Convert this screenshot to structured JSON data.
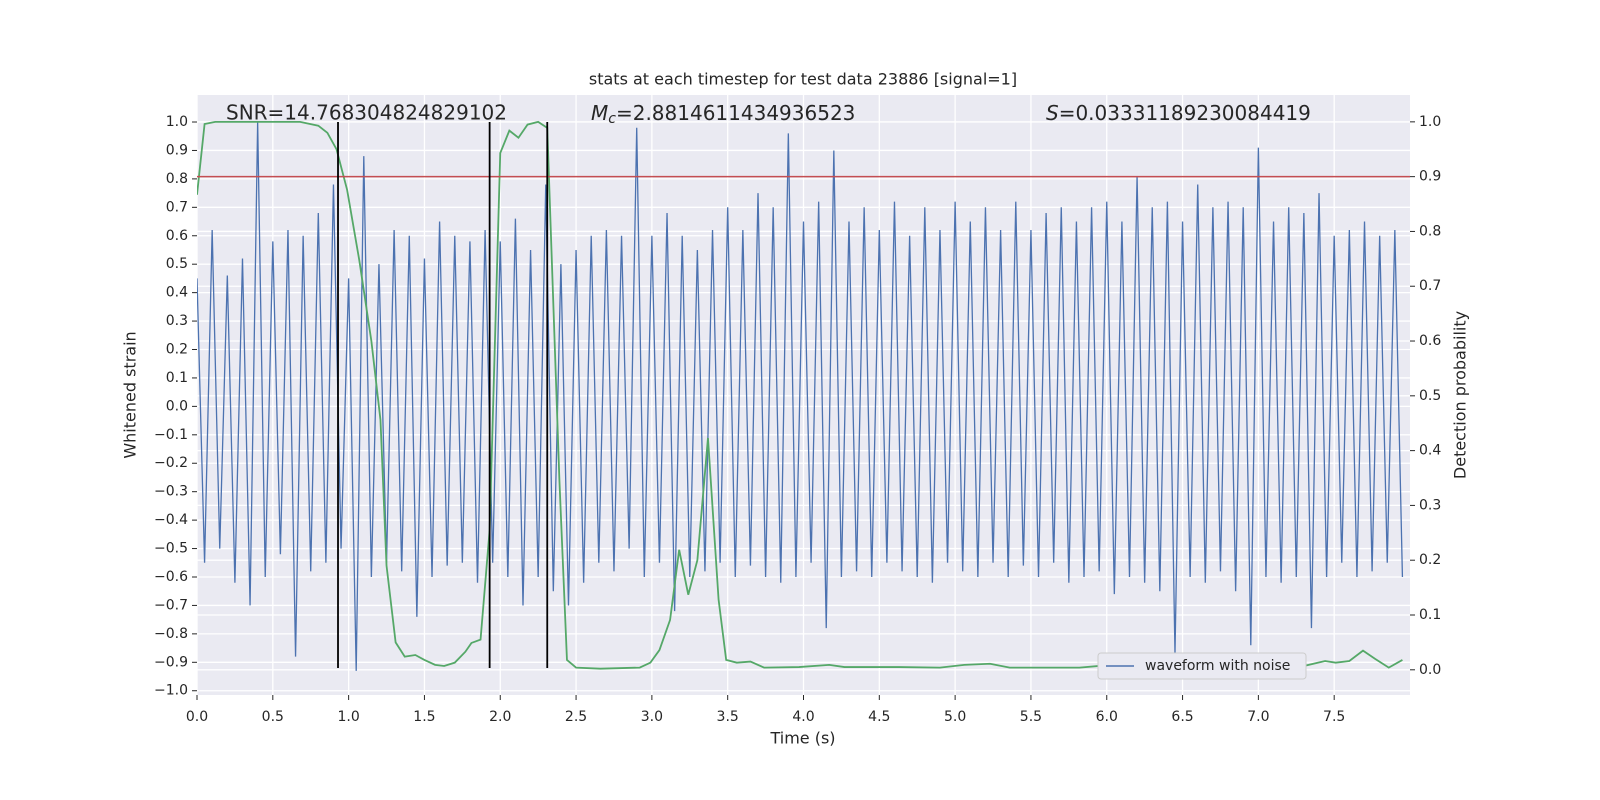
{
  "chart_data": {
    "type": "line",
    "title": "stats at each timestep for test data 23886 [signal=1]",
    "annotations": {
      "snr": "SNR=14.768304824829102",
      "mc": {
        "symbol": "M",
        "subscript": "c",
        "text": "=2.8814611434936523"
      },
      "s": {
        "symbol": "S",
        "text": "=0.03331189230084419"
      }
    },
    "x_label": "Time (s)",
    "y_label": "Whitened strain",
    "y2_label": "Detection probability",
    "xlim": [
      0,
      8.0
    ],
    "ylim": [
      -1.015,
      1.095
    ],
    "y2lim": [
      -0.046,
      1.049
    ],
    "xticks": [
      {
        "value": 0,
        "label": "0.0"
      },
      {
        "value": 0.5,
        "label": "0.5"
      },
      {
        "value": 1,
        "label": "1.0"
      },
      {
        "value": 1.5,
        "label": "1.5"
      },
      {
        "value": 2,
        "label": "2.0"
      },
      {
        "value": 2.5,
        "label": "2.5"
      },
      {
        "value": 3,
        "label": "3.0"
      },
      {
        "value": 3.5,
        "label": "3.5"
      },
      {
        "value": 4,
        "label": "4.0"
      },
      {
        "value": 4.5,
        "label": "4.5"
      },
      {
        "value": 5,
        "label": "5.0"
      },
      {
        "value": 5.5,
        "label": "5.5"
      },
      {
        "value": 6,
        "label": "6.0"
      },
      {
        "value": 6.5,
        "label": "6.5"
      },
      {
        "value": 7,
        "label": "7.0"
      },
      {
        "value": 7.5,
        "label": "7.5"
      }
    ],
    "yticks": [
      {
        "value": -1,
        "label": "−1.0"
      },
      {
        "value": -0.9,
        "label": "−0.9"
      },
      {
        "value": -0.8,
        "label": "−0.8"
      },
      {
        "value": -0.7,
        "label": "−0.7"
      },
      {
        "value": -0.6,
        "label": "−0.6"
      },
      {
        "value": -0.5,
        "label": "−0.5"
      },
      {
        "value": -0.4,
        "label": "−0.4"
      },
      {
        "value": -0.3,
        "label": "−0.3"
      },
      {
        "value": -0.2,
        "label": "−0.2"
      },
      {
        "value": -0.1,
        "label": "−0.1"
      },
      {
        "value": 0,
        "label": "0.0"
      },
      {
        "value": 0.1,
        "label": "0.1"
      },
      {
        "value": 0.2,
        "label": "0.2"
      },
      {
        "value": 0.3,
        "label": "0.3"
      },
      {
        "value": 0.4,
        "label": "0.4"
      },
      {
        "value": 0.5,
        "label": "0.5"
      },
      {
        "value": 0.6,
        "label": "0.6"
      },
      {
        "value": 0.7,
        "label": "0.7"
      },
      {
        "value": 0.8,
        "label": "0.8"
      },
      {
        "value": 0.9,
        "label": "0.9"
      },
      {
        "value": 1,
        "label": "1.0"
      }
    ],
    "y2ticks": [
      {
        "value": 0,
        "label": "0.0"
      },
      {
        "value": 0.1,
        "label": "0.1"
      },
      {
        "value": 0.2,
        "label": "0.2"
      },
      {
        "value": 0.3,
        "label": "0.3"
      },
      {
        "value": 0.4,
        "label": "0.4"
      },
      {
        "value": 0.5,
        "label": "0.5"
      },
      {
        "value": 0.6,
        "label": "0.6"
      },
      {
        "value": 0.7,
        "label": "0.7"
      },
      {
        "value": 0.8,
        "label": "0.8"
      },
      {
        "value": 0.9,
        "label": "0.9"
      },
      {
        "value": 1,
        "label": "1.0"
      }
    ],
    "grid": true,
    "legend": "lower right",
    "series": [
      {
        "name": "waveform with noise",
        "color": "#4c72b0",
        "axis": "y",
        "x": [
          0,
          0.05,
          0.1,
          0.15,
          0.2,
          0.25,
          0.3,
          0.35,
          0.4,
          0.45,
          0.5,
          0.55,
          0.6,
          0.65,
          0.7,
          0.75,
          0.8,
          0.85,
          0.9,
          0.95,
          1,
          1.05,
          1.1,
          1.15,
          1.2,
          1.25,
          1.3,
          1.35,
          1.4,
          1.45,
          1.5,
          1.55,
          1.6,
          1.65,
          1.7,
          1.75,
          1.8,
          1.85,
          1.9,
          1.95,
          2,
          2.05,
          2.1,
          2.15,
          2.2,
          2.25,
          2.3,
          2.35,
          2.4,
          2.45,
          2.5,
          2.55,
          2.6,
          2.65,
          2.7,
          2.75,
          2.8,
          2.85,
          2.9,
          2.95,
          3,
          3.05,
          3.1,
          3.15,
          3.2,
          3.25,
          3.3,
          3.35,
          3.4,
          3.45,
          3.5,
          3.55,
          3.6,
          3.65,
          3.7,
          3.75,
          3.8,
          3.85,
          3.9,
          3.95,
          4,
          4.05,
          4.1,
          4.15,
          4.2,
          4.25,
          4.3,
          4.35,
          4.4,
          4.45,
          4.5,
          4.55,
          4.6,
          4.65,
          4.7,
          4.75,
          4.8,
          4.85,
          4.9,
          4.95,
          5,
          5.05,
          5.1,
          5.15,
          5.2,
          5.25,
          5.3,
          5.35,
          5.4,
          5.45,
          5.5,
          5.55,
          5.6,
          5.65,
          5.7,
          5.75,
          5.8,
          5.85,
          5.9,
          5.95,
          6,
          6.05,
          6.1,
          6.15,
          6.2,
          6.25,
          6.3,
          6.35,
          6.4,
          6.45,
          6.5,
          6.55,
          6.6,
          6.65,
          6.7,
          6.75,
          6.8,
          6.85,
          6.9,
          6.95,
          7,
          7.05,
          7.1,
          7.15,
          7.2,
          7.25,
          7.3,
          7.35,
          7.4,
          7.45,
          7.5,
          7.55,
          7.6,
          7.65,
          7.7,
          7.75,
          7.8,
          7.85,
          7.9,
          7.95
        ],
        "values": [
          0.45,
          -0.55,
          0.62,
          -0.5,
          0.46,
          -0.62,
          0.52,
          -0.7,
          1.0,
          -0.6,
          0.58,
          -0.52,
          0.62,
          -0.88,
          0.6,
          -0.58,
          0.68,
          -0.55,
          0.78,
          -0.5,
          0.45,
          -0.93,
          0.88,
          -0.6,
          0.5,
          -0.55,
          0.62,
          -0.58,
          0.6,
          -0.74,
          0.52,
          -0.6,
          0.65,
          -0.56,
          0.6,
          -0.55,
          0.58,
          -0.62,
          0.62,
          -0.55,
          0.58,
          -0.6,
          0.66,
          -0.7,
          0.55,
          -0.6,
          0.78,
          -0.65,
          0.5,
          -0.7,
          0.55,
          -0.62,
          0.6,
          -0.55,
          0.62,
          -0.58,
          0.6,
          -0.5,
          0.98,
          -0.6,
          0.6,
          -0.55,
          0.68,
          -0.72,
          0.6,
          -0.6,
          0.55,
          -0.58,
          0.62,
          -0.55,
          0.7,
          -0.6,
          0.62,
          -0.56,
          0.75,
          -0.6,
          0.7,
          -0.62,
          0.96,
          -0.6,
          0.65,
          -0.55,
          0.72,
          -0.78,
          0.9,
          -0.6,
          0.65,
          -0.58,
          0.7,
          -0.6,
          0.62,
          -0.55,
          0.72,
          -0.58,
          0.6,
          -0.6,
          0.7,
          -0.62,
          0.62,
          -0.55,
          0.72,
          -0.58,
          0.65,
          -0.6,
          0.7,
          -0.55,
          0.62,
          -0.6,
          0.72,
          -0.56,
          0.62,
          -0.6,
          0.68,
          -0.55,
          0.7,
          -0.62,
          0.65,
          -0.6,
          0.7,
          -0.58,
          0.72,
          -0.66,
          0.65,
          -0.6,
          0.81,
          -0.62,
          0.7,
          -0.65,
          0.72,
          -0.87,
          0.65,
          -0.6,
          0.78,
          -0.62,
          0.7,
          -0.58,
          0.72,
          -0.65,
          0.7,
          -0.84,
          0.91,
          -0.6,
          0.65,
          -0.62,
          0.7,
          -0.6,
          0.68,
          -0.78,
          0.75,
          -0.6,
          0.6,
          -0.55,
          0.62,
          -0.6,
          0.65,
          -0.58,
          0.6,
          -0.55,
          0.62,
          -0.6
        ]
      },
      {
        "color": "#55a868",
        "axis": "y2",
        "x": [
          0,
          0.05,
          0.12,
          0.28,
          0.68,
          0.8,
          0.86,
          0.92,
          0.99,
          1.07,
          1.15,
          1.21,
          1.25,
          1.31,
          1.37,
          1.44,
          1.5,
          1.57,
          1.63,
          1.7,
          1.77,
          1.81,
          1.87,
          1.93,
          2.0,
          2.06,
          2.12,
          2.18,
          2.25,
          2.31,
          2.39,
          2.44,
          2.5,
          2.66,
          2.92,
          2.99,
          3.05,
          3.12,
          3.18,
          3.24,
          3.3,
          3.37,
          3.44,
          3.49,
          3.56,
          3.65,
          3.74,
          3.97,
          4.17,
          4.27,
          4.63,
          4.9,
          5.06,
          5.23,
          5.36,
          5.82,
          5.95,
          6.48,
          6.74,
          7.27,
          7.44,
          7.51,
          7.6,
          7.69,
          7.77,
          7.86,
          7.95
        ],
        "values": [
          0.867,
          0.996,
          1.0,
          1.0,
          1.0,
          0.993,
          0.98,
          0.95,
          0.876,
          0.748,
          0.6,
          0.456,
          0.19,
          0.05,
          0.024,
          0.027,
          0.018,
          0.009,
          0.007,
          0.013,
          0.033,
          0.049,
          0.055,
          0.255,
          0.943,
          0.984,
          0.971,
          0.995,
          1.0,
          0.989,
          0.347,
          0.018,
          0.004,
          0.002,
          0.004,
          0.013,
          0.036,
          0.091,
          0.219,
          0.137,
          0.2,
          0.423,
          0.128,
          0.018,
          0.013,
          0.015,
          0.004,
          0.005,
          0.009,
          0.005,
          0.005,
          0.004,
          0.009,
          0.011,
          0.004,
          0.004,
          0.007,
          0.004,
          0.005,
          0.005,
          0.016,
          0.013,
          0.016,
          0.035,
          0.02,
          0.004,
          0.018
        ]
      }
    ],
    "threshold": {
      "value": 0.9,
      "axis": "y2",
      "color": "#c44e52"
    },
    "vlines": {
      "x": [
        0.93,
        1.93,
        2.31
      ],
      "ymin": -0.92,
      "ymax": 1.0,
      "color": "#000000"
    }
  }
}
